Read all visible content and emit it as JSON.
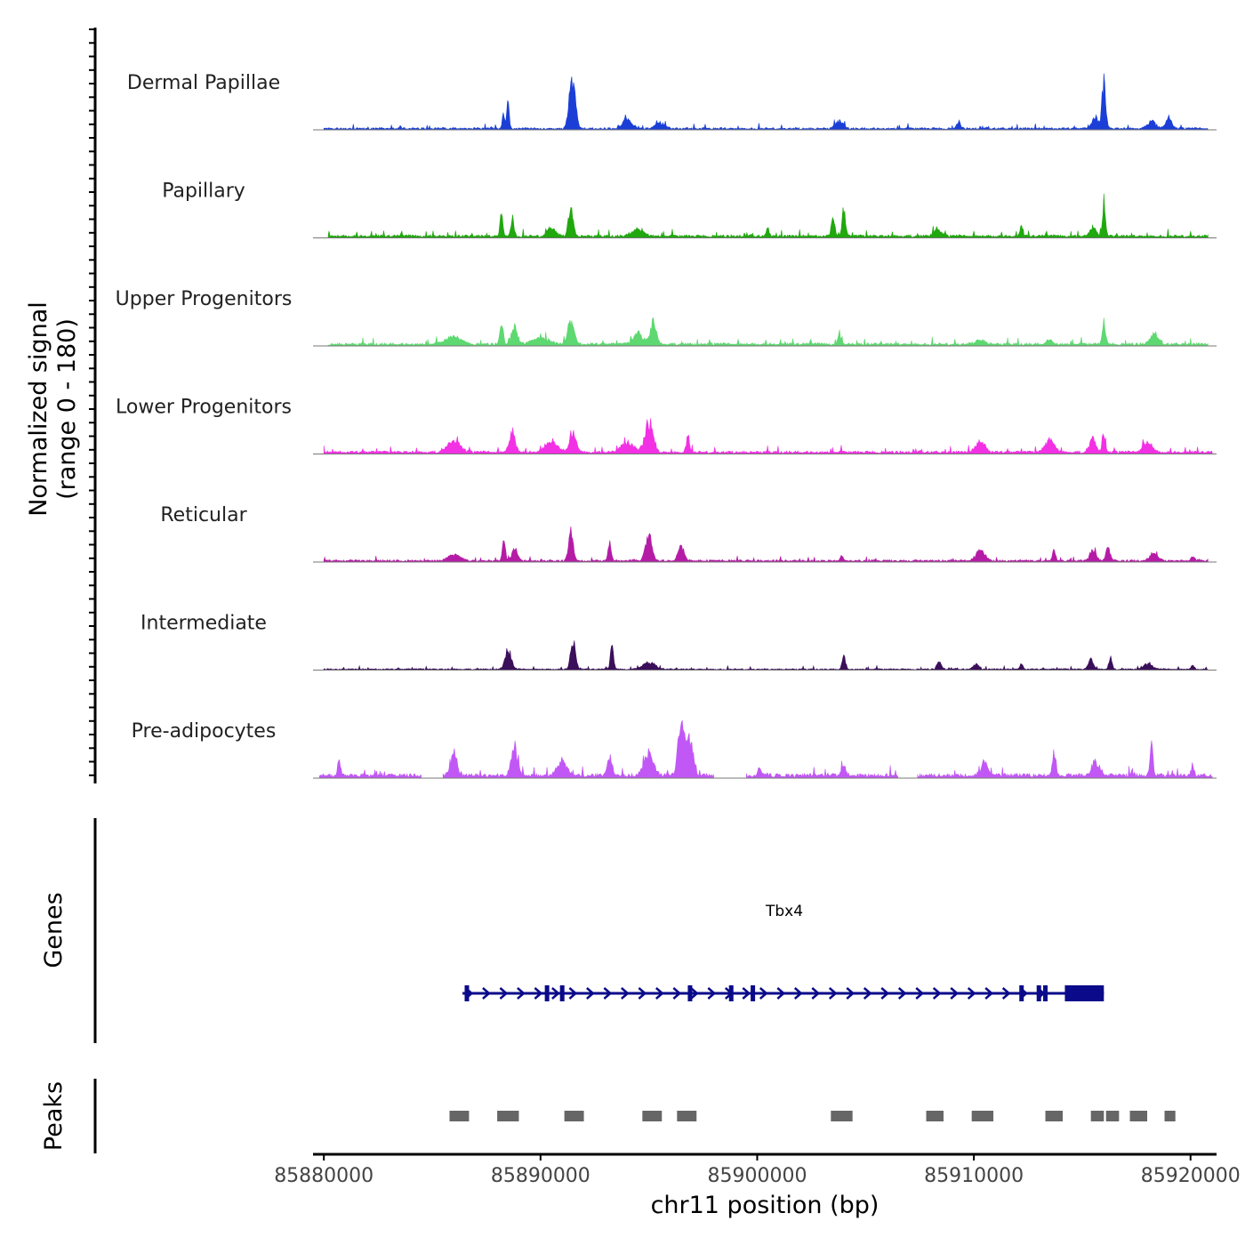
{
  "chart_data": {
    "type": "area",
    "title": "",
    "ylabel_line1": "Normalized signal",
    "ylabel_line2": "(range 0 - 180)",
    "ylim": [
      0,
      180
    ],
    "xlabel": "chr11 position (bp)",
    "xlim": [
      85879500,
      85921200
    ],
    "x_ticks": [
      85880000,
      85890000,
      85900000,
      85910000,
      85920000
    ],
    "x_tick_labels": [
      "85880000",
      "85890000",
      "85900000",
      "85910000",
      "85920000"
    ],
    "signal_start": 85879800,
    "signal_end": 85921000,
    "tracks": [
      {
        "name": "Dermal Papillae",
        "color": "#1b3fd6",
        "baseline": 3,
        "regions": [
          [
            85880000,
            85920800
          ]
        ],
        "peaks": [
          {
            "x": 85888300,
            "h": 30,
            "w": 80
          },
          {
            "x": 85888500,
            "h": 68,
            "w": 70
          },
          {
            "x": 85891400,
            "h": 85,
            "w": 160
          },
          {
            "x": 85891600,
            "h": 55,
            "w": 120
          },
          {
            "x": 85894000,
            "h": 18,
            "w": 300
          },
          {
            "x": 85895500,
            "h": 12,
            "w": 300
          },
          {
            "x": 85903800,
            "h": 16,
            "w": 260
          },
          {
            "x": 85909300,
            "h": 13,
            "w": 120
          },
          {
            "x": 85916000,
            "h": 92,
            "w": 120
          },
          {
            "x": 85915600,
            "h": 22,
            "w": 200
          },
          {
            "x": 85918200,
            "h": 15,
            "w": 250
          },
          {
            "x": 85919000,
            "h": 20,
            "w": 200
          }
        ]
      },
      {
        "name": "Papillary",
        "color": "#20a80e",
        "baseline": 4,
        "regions": [
          [
            85880200,
            85920800
          ]
        ],
        "peaks": [
          {
            "x": 85888200,
            "h": 50,
            "w": 90
          },
          {
            "x": 85888700,
            "h": 40,
            "w": 100
          },
          {
            "x": 85891400,
            "h": 55,
            "w": 160
          },
          {
            "x": 85890500,
            "h": 18,
            "w": 250
          },
          {
            "x": 85894500,
            "h": 14,
            "w": 400
          },
          {
            "x": 85900500,
            "h": 14,
            "w": 100
          },
          {
            "x": 85903500,
            "h": 48,
            "w": 100
          },
          {
            "x": 85904000,
            "h": 55,
            "w": 100
          },
          {
            "x": 85908300,
            "h": 14,
            "w": 250
          },
          {
            "x": 85912200,
            "h": 20,
            "w": 90
          },
          {
            "x": 85915500,
            "h": 18,
            "w": 200
          },
          {
            "x": 85916000,
            "h": 68,
            "w": 100
          }
        ]
      },
      {
        "name": "Upper Progenitors",
        "color": "#5ed870",
        "baseline": 4,
        "regions": [
          [
            85880200,
            85920800
          ]
        ],
        "peaks": [
          {
            "x": 85886000,
            "h": 14,
            "w": 500
          },
          {
            "x": 85888200,
            "h": 48,
            "w": 100
          },
          {
            "x": 85888800,
            "h": 32,
            "w": 200
          },
          {
            "x": 85891400,
            "h": 48,
            "w": 200
          },
          {
            "x": 85890000,
            "h": 14,
            "w": 500
          },
          {
            "x": 85894500,
            "h": 24,
            "w": 300
          },
          {
            "x": 85895200,
            "h": 42,
            "w": 200
          },
          {
            "x": 85903800,
            "h": 22,
            "w": 100
          },
          {
            "x": 85910300,
            "h": 10,
            "w": 300
          },
          {
            "x": 85913500,
            "h": 8,
            "w": 200
          },
          {
            "x": 85916000,
            "h": 45,
            "w": 100
          },
          {
            "x": 85918300,
            "h": 20,
            "w": 250
          }
        ]
      },
      {
        "name": "Lower Progenitors",
        "color": "#f230e4",
        "baseline": 4,
        "regions": [
          [
            85880000,
            85921000
          ]
        ],
        "peaks": [
          {
            "x": 85886000,
            "h": 24,
            "w": 400
          },
          {
            "x": 85888700,
            "h": 40,
            "w": 200
          },
          {
            "x": 85890500,
            "h": 22,
            "w": 400
          },
          {
            "x": 85891500,
            "h": 38,
            "w": 200
          },
          {
            "x": 85895000,
            "h": 60,
            "w": 250
          },
          {
            "x": 85894000,
            "h": 20,
            "w": 400
          },
          {
            "x": 85896800,
            "h": 35,
            "w": 100
          },
          {
            "x": 85910300,
            "h": 22,
            "w": 300
          },
          {
            "x": 85913500,
            "h": 24,
            "w": 300
          },
          {
            "x": 85915500,
            "h": 26,
            "w": 200
          },
          {
            "x": 85916000,
            "h": 42,
            "w": 100
          },
          {
            "x": 85918000,
            "h": 20,
            "w": 300
          }
        ]
      },
      {
        "name": "Reticular",
        "color": "#b51ca6",
        "baseline": 3,
        "regions": [
          [
            85880000,
            85920800
          ]
        ],
        "peaks": [
          {
            "x": 85886000,
            "h": 12,
            "w": 400
          },
          {
            "x": 85888300,
            "h": 42,
            "w": 100
          },
          {
            "x": 85888800,
            "h": 22,
            "w": 200
          },
          {
            "x": 85891400,
            "h": 58,
            "w": 150
          },
          {
            "x": 85893200,
            "h": 38,
            "w": 100
          },
          {
            "x": 85895000,
            "h": 55,
            "w": 200
          },
          {
            "x": 85896500,
            "h": 28,
            "w": 200
          },
          {
            "x": 85903900,
            "h": 10,
            "w": 100
          },
          {
            "x": 85910300,
            "h": 20,
            "w": 300
          },
          {
            "x": 85913700,
            "h": 22,
            "w": 100
          },
          {
            "x": 85915500,
            "h": 22,
            "w": 200
          },
          {
            "x": 85916200,
            "h": 24,
            "w": 150
          },
          {
            "x": 85918300,
            "h": 18,
            "w": 250
          },
          {
            "x": 85920100,
            "h": 10,
            "w": 100
          }
        ]
      },
      {
        "name": "Intermediate",
        "color": "#3b0f5a",
        "baseline": 2,
        "regions": [
          [
            85880000,
            85920800
          ]
        ],
        "peaks": [
          {
            "x": 85888500,
            "h": 38,
            "w": 200
          },
          {
            "x": 85891500,
            "h": 60,
            "w": 150
          },
          {
            "x": 85893300,
            "h": 48,
            "w": 100
          },
          {
            "x": 85895000,
            "h": 14,
            "w": 400
          },
          {
            "x": 85904000,
            "h": 30,
            "w": 100
          },
          {
            "x": 85908400,
            "h": 14,
            "w": 150
          },
          {
            "x": 85910100,
            "h": 12,
            "w": 150
          },
          {
            "x": 85912200,
            "h": 10,
            "w": 100
          },
          {
            "x": 85915400,
            "h": 20,
            "w": 150
          },
          {
            "x": 85916300,
            "h": 24,
            "w": 100
          },
          {
            "x": 85918000,
            "h": 10,
            "w": 300
          },
          {
            "x": 85920100,
            "h": 8,
            "w": 100
          }
        ]
      },
      {
        "name": "Pre-adipocytes",
        "color": "#c158f5",
        "baseline": 6,
        "regions": [
          [
            85879800,
            85884500
          ],
          [
            85885500,
            85898000
          ],
          [
            85899500,
            85906500
          ],
          [
            85907400,
            85921000
          ]
        ],
        "peaks": [
          {
            "x": 85880700,
            "h": 28,
            "w": 100
          },
          {
            "x": 85886000,
            "h": 50,
            "w": 200
          },
          {
            "x": 85888800,
            "h": 58,
            "w": 200
          },
          {
            "x": 85891000,
            "h": 30,
            "w": 300
          },
          {
            "x": 85893200,
            "h": 38,
            "w": 150
          },
          {
            "x": 85895000,
            "h": 45,
            "w": 300
          },
          {
            "x": 85896500,
            "h": 115,
            "w": 200
          },
          {
            "x": 85896900,
            "h": 80,
            "w": 200
          },
          {
            "x": 85900100,
            "h": 14,
            "w": 100
          },
          {
            "x": 85904000,
            "h": 18,
            "w": 150
          },
          {
            "x": 85910500,
            "h": 32,
            "w": 200
          },
          {
            "x": 85913700,
            "h": 48,
            "w": 100
          },
          {
            "x": 85915600,
            "h": 30,
            "w": 200
          },
          {
            "x": 85918200,
            "h": 58,
            "w": 100
          },
          {
            "x": 85920100,
            "h": 22,
            "w": 100
          }
        ]
      }
    ],
    "genes_label": "Genes",
    "gene": {
      "name": "Tbx4",
      "start": 85886400,
      "end": 85916000,
      "strand": "+",
      "color": "#0a0a8a",
      "thick_start": 85914200,
      "exons": [
        85886600,
        85890300,
        85891000,
        85896900,
        85898800,
        85899800,
        85912200,
        85913000,
        85913300
      ]
    },
    "peaks_label": "Peaks",
    "peak_color": "#666666",
    "peak_regions": [
      [
        85885800,
        85886700
      ],
      [
        85888000,
        85889000
      ],
      [
        85891100,
        85892000
      ],
      [
        85894700,
        85895600
      ],
      [
        85896300,
        85897200
      ],
      [
        85903400,
        85904400
      ],
      [
        85907800,
        85908600
      ],
      [
        85909900,
        85910900
      ],
      [
        85913300,
        85914100
      ],
      [
        85915400,
        85916000
      ],
      [
        85916100,
        85916700
      ],
      [
        85917200,
        85918000
      ],
      [
        85918800,
        85919300
      ]
    ]
  }
}
